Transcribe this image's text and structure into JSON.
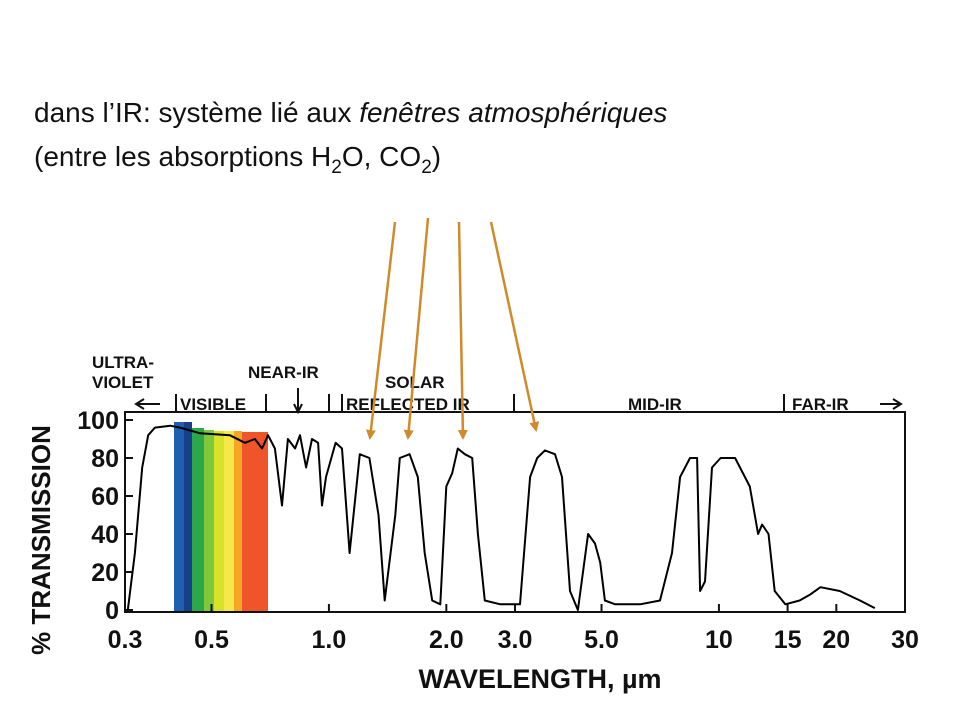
{
  "heading": {
    "lines": [
      [
        "dans l’IR: système lié aux ",
        "fenêtres atmosphériques"
      ],
      [
        "(entre les absorptions H",
        "2",
        "O, CO",
        "2",
        ")"
      ]
    ]
  },
  "chart_data": {
    "type": "line",
    "x_label": "WAVELENGTH, µm",
    "y_label": "% TRANSMISSION",
    "annotations": [
      "ULTRA-",
      "VIOLET",
      "VISIBLE",
      "NEAR-IR",
      "SOLAR",
      "REFLECTED IR",
      "MID-IR",
      "FAR-IR"
    ],
    "x_log": true,
    "xlim": [
      0.3,
      30
    ],
    "xticks": [
      0.3,
      0.5,
      {
        "value": 1,
        "label": "1.0"
      },
      {
        "value": 2,
        "label": "2.0"
      },
      {
        "value": 3,
        "label": "3.0"
      },
      {
        "value": 5,
        "label": "5.0"
      },
      10,
      15,
      20,
      30
    ],
    "ylim": [
      0,
      100
    ],
    "yticks": [
      0,
      20,
      40,
      60,
      80,
      100
    ],
    "x": [
      0.305,
      0.318,
      0.332,
      0.344,
      0.358,
      0.392,
      0.415,
      0.467,
      0.557,
      0.609,
      0.646,
      0.674,
      0.698,
      0.727,
      0.758,
      0.785,
      0.819,
      0.843,
      0.874,
      0.905,
      0.938,
      0.96,
      0.983,
      1.04,
      1.08,
      1.13,
      1.2,
      1.27,
      1.34,
      1.39,
      1.48,
      1.52,
      1.61,
      1.69,
      1.76,
      1.84,
      1.93,
      2.0,
      2.07,
      2.14,
      2.23,
      2.33,
      2.41,
      2.51,
      2.75,
      3.09,
      3.28,
      3.42,
      3.58,
      3.8,
      3.96,
      4.15,
      4.35,
      4.62,
      4.81,
      4.96,
      5.1,
      5.42,
      6.28,
      7.06,
      7.58,
      7.95,
      8.43,
      8.79,
      8.95,
      9.21,
      9.6,
      10.1,
      11.0,
      12.0,
      12.6,
      12.9,
      13.4,
      13.9,
      14.8,
      16.1,
      17.1,
      18.2,
      20.4,
      23.0,
      25.1
    ],
    "series": [
      {
        "color": "#000000",
        "values": [
          0,
          30,
          75,
          92,
          96,
          97,
          96,
          93,
          92,
          88,
          90,
          85,
          92,
          85,
          55,
          90,
          85,
          92,
          75,
          90,
          88,
          55,
          70,
          88,
          85,
          30,
          82,
          80,
          50,
          5,
          50,
          80,
          82,
          70,
          30,
          5,
          3,
          65,
          72,
          85,
          82,
          80,
          40,
          5,
          3,
          3,
          70,
          80,
          84,
          82,
          70,
          10,
          0,
          40,
          35,
          25,
          5,
          3,
          3,
          5,
          30,
          70,
          80,
          80,
          10,
          15,
          75,
          80,
          80,
          65,
          40,
          45,
          40,
          10,
          3,
          5,
          8,
          12,
          10,
          5,
          1
        ]
      }
    ]
  }
}
